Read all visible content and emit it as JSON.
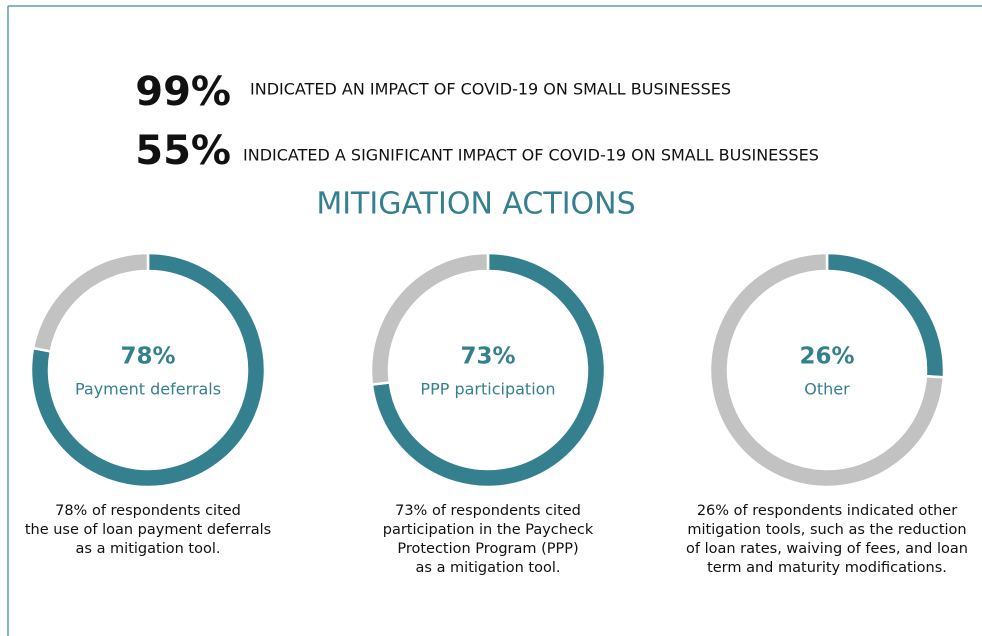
{
  "stats": [
    {
      "value": "99%",
      "text": "INDICATED AN IMPACT OF COVID-19 ON SMALL BUSINESSES"
    },
    {
      "value": "55%",
      "text": "INDICATED A SIGNIFICANT IMPACT OF COVID-19 ON SMALL BUSINESSES"
    }
  ],
  "title": "MITIGATION ACTIONS",
  "chart_data": [
    {
      "type": "donut",
      "categories": [
        "Payment deferrals",
        null
      ],
      "values": [
        78,
        22
      ],
      "value_labels": [
        "78%",
        null
      ],
      "colors": [
        "#35808f",
        "#c2c2c2"
      ],
      "caption": [
        "78% of respondents cited",
        "the use of loan payment deferrals",
        "as a mitigation tool."
      ]
    },
    {
      "type": "donut",
      "categories": [
        "PPP participation",
        null
      ],
      "values": [
        73,
        27
      ],
      "value_labels": [
        "73%",
        null
      ],
      "colors": [
        "#35808f",
        "#c2c2c2"
      ],
      "caption": [
        "73% of respondents cited",
        "participation in the Paycheck",
        "Protection Program (PPP)",
        "as a mitigation tool."
      ]
    },
    {
      "type": "donut",
      "categories": [
        "Other",
        null
      ],
      "values": [
        26,
        74
      ],
      "value_labels": [
        "26%",
        null
      ],
      "colors": [
        "#35808f",
        "#c2c2c2"
      ],
      "caption": [
        "26% of respondents indicated other",
        "mitigation tools, such as the reduction",
        "of loan rates, waiving of fees, and loan",
        "term and maturity modifications."
      ]
    }
  ]
}
